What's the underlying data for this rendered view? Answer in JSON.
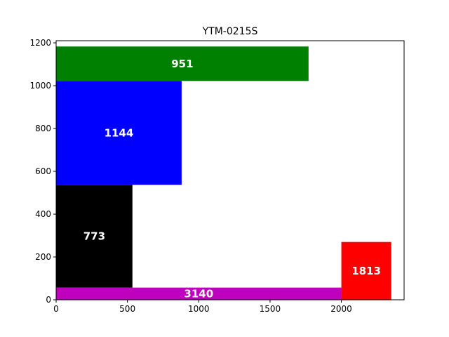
{
  "chart_data": {
    "type": "bar",
    "title": "YTM-0215S",
    "xlabel": "",
    "ylabel": "",
    "xlim": [
      0,
      2440
    ],
    "ylim": [
      0,
      1210
    ],
    "xticks": [
      "0",
      "500",
      "1000",
      "1500",
      "2000"
    ],
    "yticks": [
      "0",
      "200",
      "400",
      "600",
      "800",
      "1000",
      "1200"
    ],
    "grid": false,
    "rects": [
      {
        "label": "3140",
        "x0": 0,
        "x1": 2000,
        "y0": 0,
        "y1": 57,
        "color": "#bf00bf"
      },
      {
        "label": "773",
        "x0": 0,
        "x1": 535,
        "y0": 57,
        "y1": 537,
        "color": "#000000"
      },
      {
        "label": "1144",
        "x0": 0,
        "x1": 880,
        "y0": 537,
        "y1": 1022,
        "color": "#0000ff"
      },
      {
        "label": "951",
        "x0": 0,
        "x1": 1770,
        "y0": 1022,
        "y1": 1183,
        "color": "#008000"
      },
      {
        "label": "1813",
        "x0": 2000,
        "x1": 2350,
        "y0": 0,
        "y1": 270,
        "color": "#ff0000"
      }
    ]
  }
}
